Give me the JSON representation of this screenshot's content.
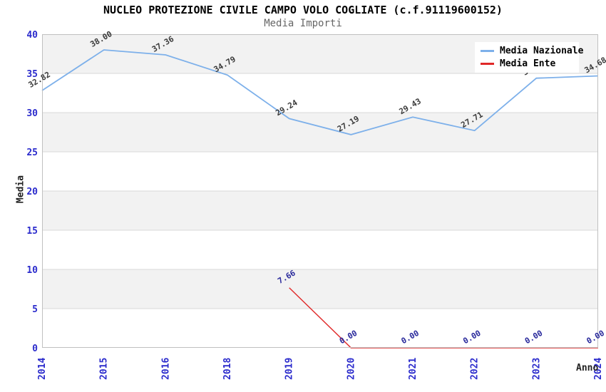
{
  "title": "NUCLEO PROTEZIONE CIVILE CAMPO VOLO COGLIATE (c.f.91119600152)",
  "subtitle": "Media Importi",
  "axes": {
    "y_title": "Media",
    "x_title": "Anno",
    "y_ticks": [
      "0",
      "5",
      "10",
      "15",
      "20",
      "25",
      "30",
      "35",
      "40"
    ],
    "x_ticks": [
      "2014",
      "2015",
      "2016",
      "2018",
      "2019",
      "2020",
      "2021",
      "2022",
      "2023",
      "2024"
    ]
  },
  "legend": {
    "position": "top-right",
    "items": [
      {
        "label": "Media Nazionale"
      },
      {
        "label": "Media Ente"
      }
    ]
  },
  "chart_data": {
    "type": "line",
    "title": "NUCLEO PROTEZIONE CIVILE CAMPO VOLO COGLIATE (c.f.91119600152)",
    "subtitle": "Media Importi",
    "xlabel": "Anno",
    "ylabel": "Media",
    "x": [
      "2014",
      "2015",
      "2016",
      "2018",
      "2019",
      "2020",
      "2021",
      "2022",
      "2023",
      "2024"
    ],
    "ylim": [
      0,
      40
    ],
    "ystep": 5,
    "grid": "horizontal-bands",
    "legend_position": "top-right",
    "series": [
      {
        "name": "Media Nazionale",
        "color": "#7db0ea",
        "label_color": "#3a3a3a",
        "values": [
          32.82,
          38.0,
          37.36,
          34.79,
          29.24,
          27.19,
          29.43,
          27.71,
          34.39,
          34.68
        ],
        "labels": [
          "32.82",
          "38.00",
          "37.36",
          "34.79",
          "29.24",
          "27.19",
          "29.43",
          "27.71",
          "34.39",
          "34.68"
        ]
      },
      {
        "name": "Media Ente",
        "color": "#e02828",
        "label_color": "#2a2a9c",
        "values": [
          null,
          null,
          null,
          null,
          7.66,
          0.0,
          0.0,
          0.0,
          0.0,
          0.0
        ],
        "labels": [
          null,
          null,
          null,
          null,
          "7.66",
          "0.00",
          "0.00",
          "0.00",
          "0.00",
          "0.00"
        ]
      }
    ]
  },
  "style": {
    "band_gray": "#f2f2f2",
    "grid_line": "#d8d8d8",
    "plot_border": "#c0c0c0",
    "tick_label_color": "#2b2bcc",
    "subtitle_color": "#666666",
    "legend_bg": "#ffffff"
  }
}
